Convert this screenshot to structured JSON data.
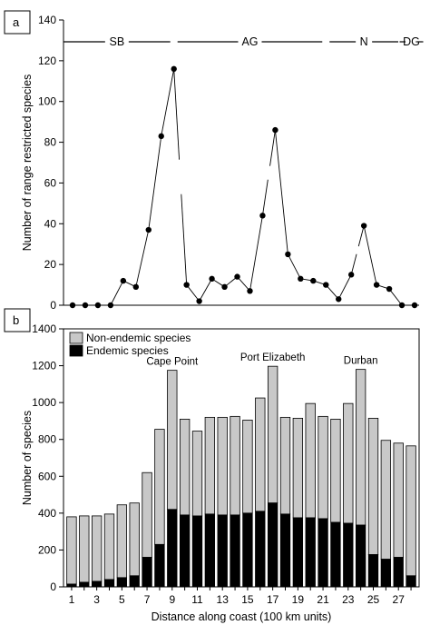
{
  "chart_data": [
    {
      "panel": "a",
      "type": "line",
      "title": "",
      "xlabel": "",
      "ylabel": "Number of range restricted species",
      "ylim": [
        0,
        140
      ],
      "yticks": [
        0,
        20,
        40,
        60,
        80,
        100,
        120,
        140
      ],
      "grid": false,
      "x": [
        1,
        2,
        3,
        4,
        5,
        6,
        7,
        8,
        9,
        10,
        11,
        12,
        13,
        14,
        15,
        16,
        17,
        18,
        19,
        20,
        21,
        22,
        23,
        24,
        25,
        26,
        27,
        28
      ],
      "values": [
        0,
        0,
        0,
        0,
        12,
        9,
        37,
        83,
        116,
        10,
        2,
        13,
        9,
        14,
        7,
        44,
        86,
        25,
        13,
        12,
        10,
        3,
        15,
        39,
        10,
        8,
        0,
        0
      ],
      "breaks_after_x": [
        9,
        16,
        23
      ],
      "zones": [
        {
          "label": "SB",
          "from": 1,
          "to": 9
        },
        {
          "label": "AG",
          "from": 9,
          "to": 21
        },
        {
          "label": "N",
          "from": 21,
          "to": 27
        },
        {
          "label": "DG",
          "from": 27,
          "to": 28
        }
      ]
    },
    {
      "panel": "b",
      "type": "bar",
      "stacked": true,
      "title": "",
      "xlabel": "Distance along coast (100 km units)",
      "ylabel": "Number of species",
      "ylim": [
        0,
        1400
      ],
      "yticks": [
        0,
        200,
        400,
        600,
        800,
        1000,
        1200,
        1400
      ],
      "xticks": [
        1,
        3,
        5,
        7,
        9,
        11,
        13,
        15,
        17,
        19,
        21,
        23,
        25,
        27
      ],
      "grid": false,
      "legend_position": "top-left",
      "x": [
        1,
        2,
        3,
        4,
        5,
        6,
        7,
        8,
        9,
        10,
        11,
        12,
        13,
        14,
        15,
        16,
        17,
        18,
        19,
        20,
        21,
        22,
        23,
        24,
        25,
        26,
        27,
        28
      ],
      "series": [
        {
          "name": "Endemic species",
          "color": "#000000",
          "values": [
            15,
            25,
            30,
            40,
            50,
            60,
            160,
            230,
            420,
            390,
            385,
            395,
            390,
            390,
            400,
            410,
            455,
            395,
            375,
            375,
            370,
            350,
            345,
            335,
            175,
            150,
            160,
            60
          ]
        },
        {
          "name": "Non-endemic species",
          "color": "#c8c8c8",
          "values": [
            365,
            360,
            355,
            355,
            395,
            395,
            460,
            625,
            755,
            520,
            460,
            525,
            530,
            535,
            505,
            615,
            742,
            525,
            540,
            620,
            555,
            560,
            650,
            845,
            740,
            645,
            620,
            705
          ]
        }
      ],
      "annotations": [
        {
          "text": "Cape Point",
          "x": 9
        },
        {
          "text": "Port Elizabeth",
          "x": 17
        },
        {
          "text": "Durban",
          "x": 24
        }
      ]
    }
  ],
  "ui": {
    "panel_a_label": "a",
    "panel_b_label": "b",
    "legend_non_endemic": "Non-endemic species",
    "legend_endemic": "Endemic species"
  }
}
